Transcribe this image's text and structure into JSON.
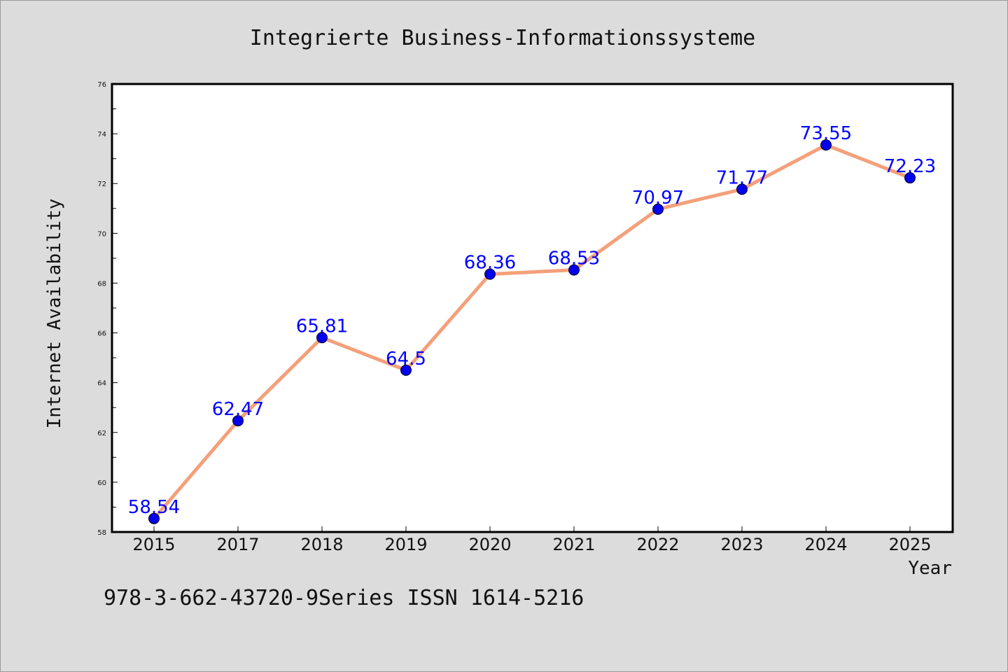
{
  "chart_data": {
    "type": "line",
    "title": "Integrierte Business-Informationssysteme",
    "xlabel": "Year",
    "ylabel": "Internet Availability",
    "categories": [
      "2015",
      "2017",
      "2018",
      "2019",
      "2020",
      "2021",
      "2022",
      "2023",
      "2024",
      "2025"
    ],
    "series": [
      {
        "values": [
          58.54,
          62.47,
          65.81,
          64.5,
          68.36,
          68.53,
          70.97,
          71.77,
          73.55,
          72.23
        ],
        "labels": [
          "58.54",
          "62.47",
          "65.81",
          "64.5",
          "68.36",
          "68.53",
          "70.97",
          "71.77",
          "73.55",
          "72.23"
        ],
        "line_color": "#f4a07a",
        "marker_color": "#0000ee"
      }
    ],
    "ylim": [
      58,
      76
    ],
    "yticks": [
      "58",
      "60",
      "62",
      "64",
      "66",
      "68",
      "70",
      "72",
      "74",
      "76"
    ],
    "grid": false,
    "legend": "none"
  },
  "footer": "978-3-662-43720-9Series ISSN 1614-5216",
  "colors": {
    "background": "#dcdcdc",
    "plot_area": "#ffffff",
    "data_label": "#0000ff"
  }
}
